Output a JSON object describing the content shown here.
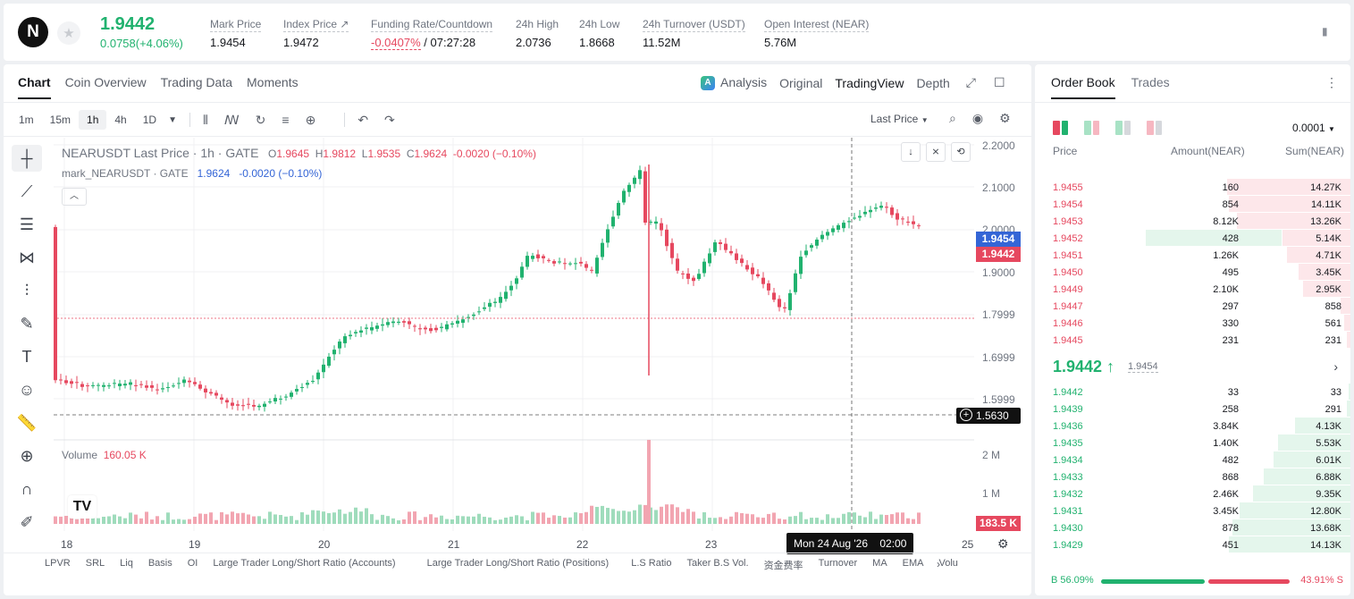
{
  "ticker": {
    "logo_letter": "N",
    "last_price": "1.9442",
    "change": "0.0758(+4.06%)",
    "stats": [
      {
        "label": "Mark Price",
        "value": "1.9454"
      },
      {
        "label": "Index Price ↗",
        "value": "1.9472"
      },
      {
        "label": "Funding Rate/Countdown",
        "value_rate": "-0.0407%",
        "value_count": " / 07:27:28"
      },
      {
        "label": "24h High",
        "value": "2.0736"
      },
      {
        "label": "24h Low",
        "value": "1.8668"
      },
      {
        "label": "24h Turnover (USDT)",
        "value": "11.52M"
      },
      {
        "label": "Open Interest (NEAR)",
        "value": "5.76M"
      }
    ]
  },
  "chart_tabs": [
    "Chart",
    "Coin Overview",
    "Trading Data",
    "Moments"
  ],
  "view_tabs": [
    "Analysis",
    "Original",
    "TradingView",
    "Depth"
  ],
  "timeframes": [
    "1m",
    "15m",
    "1h",
    "4h",
    "1D"
  ],
  "last_price_select": "Last Price",
  "legend": {
    "symbol": "NEARUSDT Last Price · 1h · GATE",
    "o_label": "O",
    "o": "1.9645",
    "h_label": "H",
    "h": "1.9812",
    "l_label": "L",
    "l": "1.9535",
    "c_label": "C",
    "c": "1.9624",
    "chg": "-0.0020 (−0.10%)",
    "mark_symbol": "mark_NEARUSDT · GATE",
    "mark_value": "1.9624",
    "mark_chg": "-0.0020 (−0.10%)"
  },
  "volume_legend": {
    "label": "Volume",
    "value": "160.05 K"
  },
  "y_axis_labels": [
    "2.2000",
    "2.1000",
    "2.0000",
    "1.9000",
    "1.7999",
    "1.6999",
    "1.5999"
  ],
  "volume_axis_labels": [
    "2 M",
    "1 M"
  ],
  "price_tags": {
    "mark": "1.9454",
    "last": "1.9442",
    "cross": "1.5630",
    "volume": "183.5 K"
  },
  "x_axis_labels": [
    "18",
    "19",
    "20",
    "21",
    "22",
    "23",
    "25"
  ],
  "crosshair_time": "Mon 24 Aug '26    02:00",
  "indicators": [
    "LPVR",
    "SRL",
    "Liq",
    "Basis",
    "OI",
    "Large Trader Long/Short Ratio (Accounts)",
    "Large Trader Long/Short Ratio (Positions)",
    "L.S Ratio",
    "Taker B.S Vol.",
    "资金费率",
    "Turnover",
    "MA",
    "EMA",
    "Volu"
  ],
  "orderbook": {
    "tabs": [
      "Order Book",
      "Trades"
    ],
    "precision": "0.0001",
    "headers": {
      "price": "Price",
      "amount": "Amount(NEAR)",
      "sum": "Sum(NEAR)"
    },
    "asks": [
      {
        "price": "1.9455",
        "amount": "160",
        "sum": "14.27K",
        "depth": 0.39
      },
      {
        "price": "1.9454",
        "amount": "854",
        "sum": "14.11K",
        "depth": 0.385
      },
      {
        "price": "1.9453",
        "amount": "8.12K",
        "sum": "13.26K",
        "depth": 0.36
      },
      {
        "price": "1.9452",
        "amount": "428",
        "sum": "5.14K",
        "depth": 0.215
      },
      {
        "price": "1.9451",
        "amount": "1.26K",
        "sum": "4.71K",
        "depth": 0.2
      },
      {
        "price": "1.9450",
        "amount": "495",
        "sum": "3.45K",
        "depth": 0.165
      },
      {
        "price": "1.9449",
        "amount": "2.10K",
        "sum": "2.95K",
        "depth": 0.15
      },
      {
        "price": "1.9447",
        "amount": "297",
        "sum": "858",
        "depth": 0.03
      },
      {
        "price": "1.9446",
        "amount": "330",
        "sum": "561",
        "depth": 0.02
      },
      {
        "price": "1.9445",
        "amount": "231",
        "sum": "231",
        "depth": 0.01
      }
    ],
    "mid_price": "1.9442 ↑",
    "mid_mark": "1.9454",
    "bids": [
      {
        "price": "1.9442",
        "amount": "33",
        "sum": "33",
        "depth": 0.005
      },
      {
        "price": "1.9439",
        "amount": "258",
        "sum": "291",
        "depth": 0.012
      },
      {
        "price": "1.9436",
        "amount": "3.84K",
        "sum": "4.13K",
        "depth": 0.175
      },
      {
        "price": "1.9435",
        "amount": "1.40K",
        "sum": "5.53K",
        "depth": 0.23
      },
      {
        "price": "1.9434",
        "amount": "482",
        "sum": "6.01K",
        "depth": 0.245
      },
      {
        "price": "1.9433",
        "amount": "868",
        "sum": "6.88K",
        "depth": 0.275
      },
      {
        "price": "1.9432",
        "amount": "2.46K",
        "sum": "9.35K",
        "depth": 0.31
      },
      {
        "price": "1.9431",
        "amount": "3.45K",
        "sum": "12.80K",
        "depth": 0.35
      },
      {
        "price": "1.9430",
        "amount": "878",
        "sum": "13.68K",
        "depth": 0.375
      },
      {
        "price": "1.9429",
        "amount": "451",
        "sum": "14.13K",
        "depth": 0.385
      }
    ],
    "buy_ratio": "B 56.09%",
    "sell_ratio": "43.91% S",
    "buy_fraction": 0.5609
  },
  "colors": {
    "up": "#21b26f",
    "down": "#e6485f",
    "mark": "#3465d6"
  }
}
